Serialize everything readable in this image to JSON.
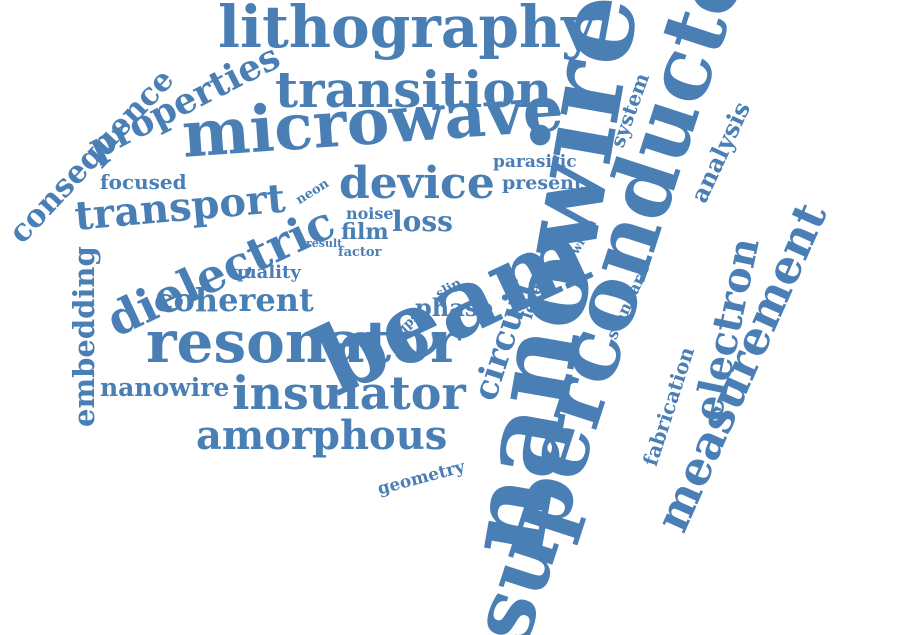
{
  "word_color": "#4a7fb5",
  "background": "#ffffff",
  "words": [
    {
      "text": "lithography"
    },
    {
      "text": "transition"
    },
    {
      "text": "microwave"
    },
    {
      "text": "properties"
    },
    {
      "text": "consequence"
    },
    {
      "text": "device"
    },
    {
      "text": "transport"
    },
    {
      "text": "focused"
    },
    {
      "text": "dielectric"
    },
    {
      "text": "beam"
    },
    {
      "text": "nanowires"
    },
    {
      "text": "superconductor"
    },
    {
      "text": "resonator"
    },
    {
      "text": "coherent"
    },
    {
      "text": "insulator"
    },
    {
      "text": "amorphous"
    },
    {
      "text": "nanowire"
    },
    {
      "text": "embedding"
    },
    {
      "text": "measurement"
    },
    {
      "text": "electron"
    },
    {
      "text": "analysis"
    },
    {
      "text": "system"
    },
    {
      "text": "parasitic"
    },
    {
      "text": "present"
    },
    {
      "text": "loss"
    },
    {
      "text": "film"
    },
    {
      "text": "noise"
    },
    {
      "text": "factor"
    },
    {
      "text": "result"
    },
    {
      "text": "quality"
    },
    {
      "text": "neon"
    },
    {
      "text": "phase"
    },
    {
      "text": "slip"
    },
    {
      "text": "cqps"
    },
    {
      "text": "circuit"
    },
    {
      "text": "level"
    },
    {
      "text": "width"
    },
    {
      "text": "standard"
    },
    {
      "text": "fabrication"
    },
    {
      "text": "geometry"
    }
  ]
}
